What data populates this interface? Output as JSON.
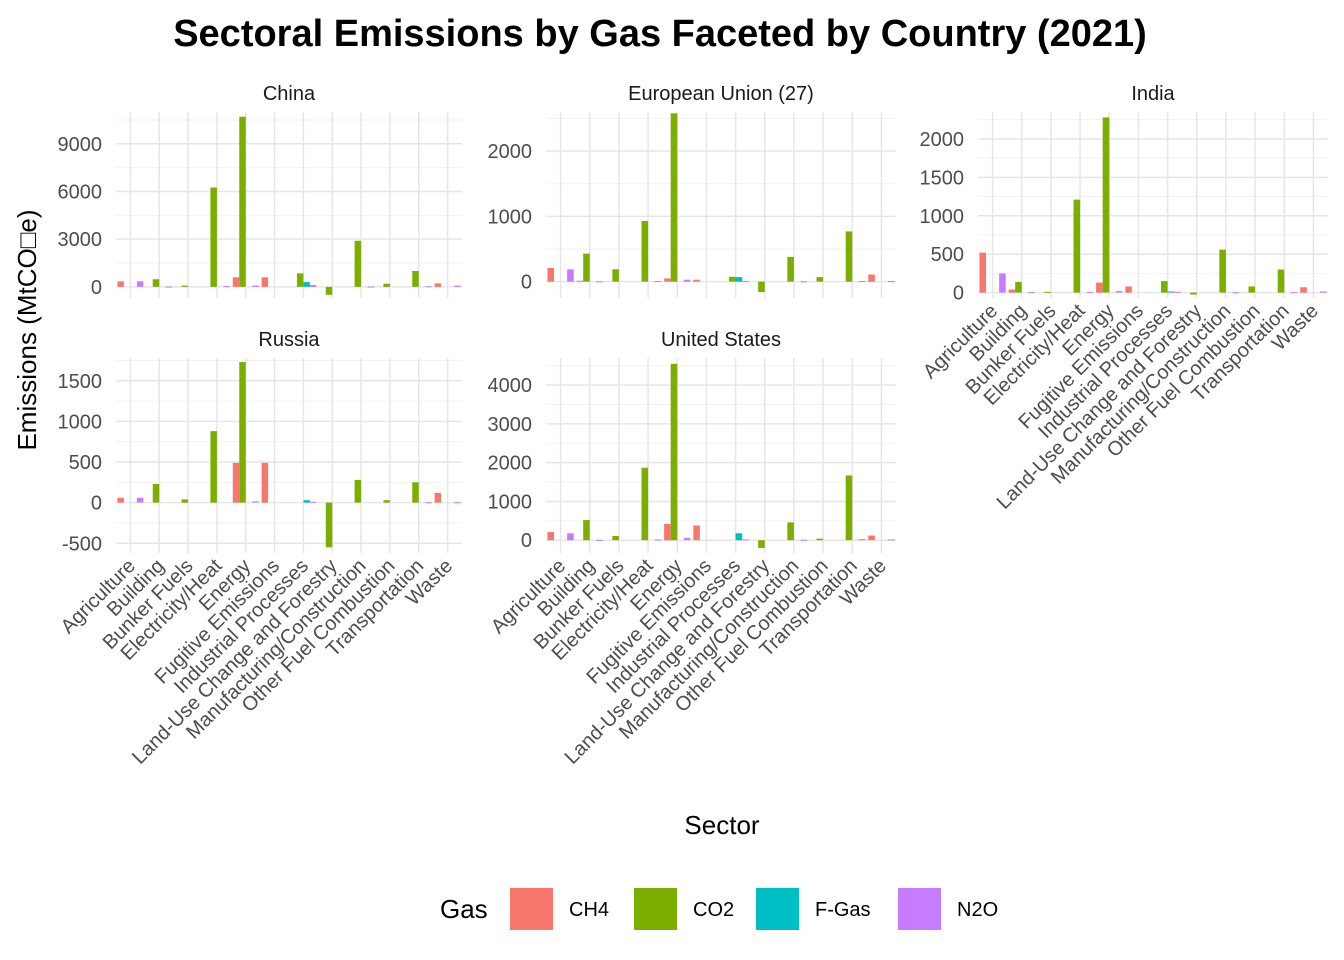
{
  "chart_data": {
    "type": "bar",
    "title": "Sectoral Emissions by Gas Faceted by Country (2021)",
    "xlabel": "Sector",
    "ylabel": "Emissions (MtCO□e)",
    "legend": {
      "title": "Gas",
      "position": "bottom"
    },
    "grid": true,
    "gases": [
      "CH4",
      "CO2",
      "F-Gas",
      "N2O"
    ],
    "colors": {
      "CH4": "#F8766D",
      "CO2": "#7CAE00",
      "F-Gas": "#00BFC4",
      "N2O": "#C77CFF"
    },
    "categories": [
      "Agriculture",
      "Building",
      "Bunker Fuels",
      "Electricity/Heat",
      "Energy",
      "Fugitive Emissions",
      "Industrial Processes",
      "Land-Use Change and Forestry",
      "Manufacturing/Construction",
      "Other Fuel Combustion",
      "Transportation",
      "Waste"
    ],
    "facets": [
      {
        "name": "China",
        "ylim": [
          -700,
          11000
        ],
        "yticks": [
          0,
          3000,
          6000,
          9000
        ],
        "series": [
          {
            "name": "CH4",
            "values": [
              350,
              0,
              0,
              0,
              600,
              600,
              0,
              0,
              0,
              0,
              0,
              220
            ]
          },
          {
            "name": "CO2",
            "values": [
              0,
              480,
              80,
              6250,
              10700,
              0,
              850,
              -500,
              2900,
              200,
              1000,
              0
            ]
          },
          {
            "name": "F-Gas",
            "values": [
              0,
              0,
              0,
              0,
              0,
              0,
              300,
              0,
              0,
              0,
              0,
              0
            ]
          },
          {
            "name": "N2O",
            "values": [
              350,
              20,
              0,
              50,
              80,
              0,
              120,
              0,
              20,
              0,
              40,
              80
            ]
          }
        ]
      },
      {
        "name": "European Union (27)",
        "ylim": [
          -250,
          2600
        ],
        "yticks": [
          0,
          1000,
          2000
        ],
        "series": [
          {
            "name": "CH4",
            "values": [
              210,
              15,
              0,
              0,
              50,
              30,
              0,
              0,
              0,
              0,
              0,
              110
            ]
          },
          {
            "name": "CO2",
            "values": [
              0,
              430,
              190,
              930,
              2580,
              0,
              75,
              -160,
              380,
              70,
              770,
              0
            ]
          },
          {
            "name": "F-Gas",
            "values": [
              0,
              0,
              0,
              0,
              0,
              0,
              70,
              0,
              0,
              0,
              0,
              0
            ]
          },
          {
            "name": "N2O",
            "values": [
              190,
              5,
              0,
              10,
              30,
              0,
              10,
              0,
              5,
              0,
              10,
              10
            ]
          }
        ]
      },
      {
        "name": "India",
        "ylim": [
          -70,
          2350
        ],
        "yticks": [
          0,
          500,
          1000,
          1500,
          2000
        ],
        "series": [
          {
            "name": "CH4",
            "values": [
              520,
              40,
              0,
              0,
              130,
              80,
              0,
              0,
              0,
              0,
              0,
              70
            ]
          },
          {
            "name": "CO2",
            "values": [
              0,
              140,
              10,
              1210,
              2280,
              0,
              150,
              -25,
              560,
              80,
              300,
              0
            ]
          },
          {
            "name": "F-Gas",
            "values": [
              0,
              0,
              0,
              0,
              0,
              0,
              15,
              0,
              0,
              0,
              0,
              0
            ]
          },
          {
            "name": "N2O",
            "values": [
              250,
              5,
              0,
              10,
              20,
              0,
              10,
              0,
              5,
              0,
              5,
              15
            ]
          }
        ]
      },
      {
        "name": "Russia",
        "ylim": [
          -620,
          1780
        ],
        "yticks": [
          -500,
          0,
          500,
          1000,
          1500
        ],
        "series": [
          {
            "name": "CH4",
            "values": [
              60,
              0,
              0,
              0,
              490,
              490,
              0,
              0,
              0,
              0,
              0,
              120
            ]
          },
          {
            "name": "CO2",
            "values": [
              0,
              230,
              40,
              880,
              1730,
              0,
              0,
              -550,
              280,
              30,
              250,
              0
            ]
          },
          {
            "name": "F-Gas",
            "values": [
              0,
              0,
              0,
              0,
              0,
              0,
              30,
              0,
              0,
              0,
              0,
              0
            ]
          },
          {
            "name": "N2O",
            "values": [
              60,
              0,
              0,
              0,
              15,
              0,
              10,
              0,
              0,
              0,
              5,
              5
            ]
          }
        ]
      },
      {
        "name": "United States",
        "ylim": [
          -330,
          4700
        ],
        "yticks": [
          0,
          1000,
          2000,
          3000,
          4000
        ],
        "series": [
          {
            "name": "CH4",
            "values": [
              210,
              0,
              0,
              0,
              420,
              380,
              0,
              0,
              0,
              0,
              0,
              120
            ]
          },
          {
            "name": "CO2",
            "values": [
              0,
              520,
              110,
              1870,
              4550,
              0,
              0,
              -200,
              460,
              40,
              1670,
              0
            ]
          },
          {
            "name": "F-Gas",
            "values": [
              0,
              0,
              0,
              0,
              0,
              0,
              180,
              0,
              0,
              0,
              0,
              0
            ]
          },
          {
            "name": "N2O",
            "values": [
              180,
              10,
              0,
              20,
              60,
              0,
              20,
              0,
              10,
              0,
              30,
              20
            ]
          }
        ]
      }
    ]
  }
}
